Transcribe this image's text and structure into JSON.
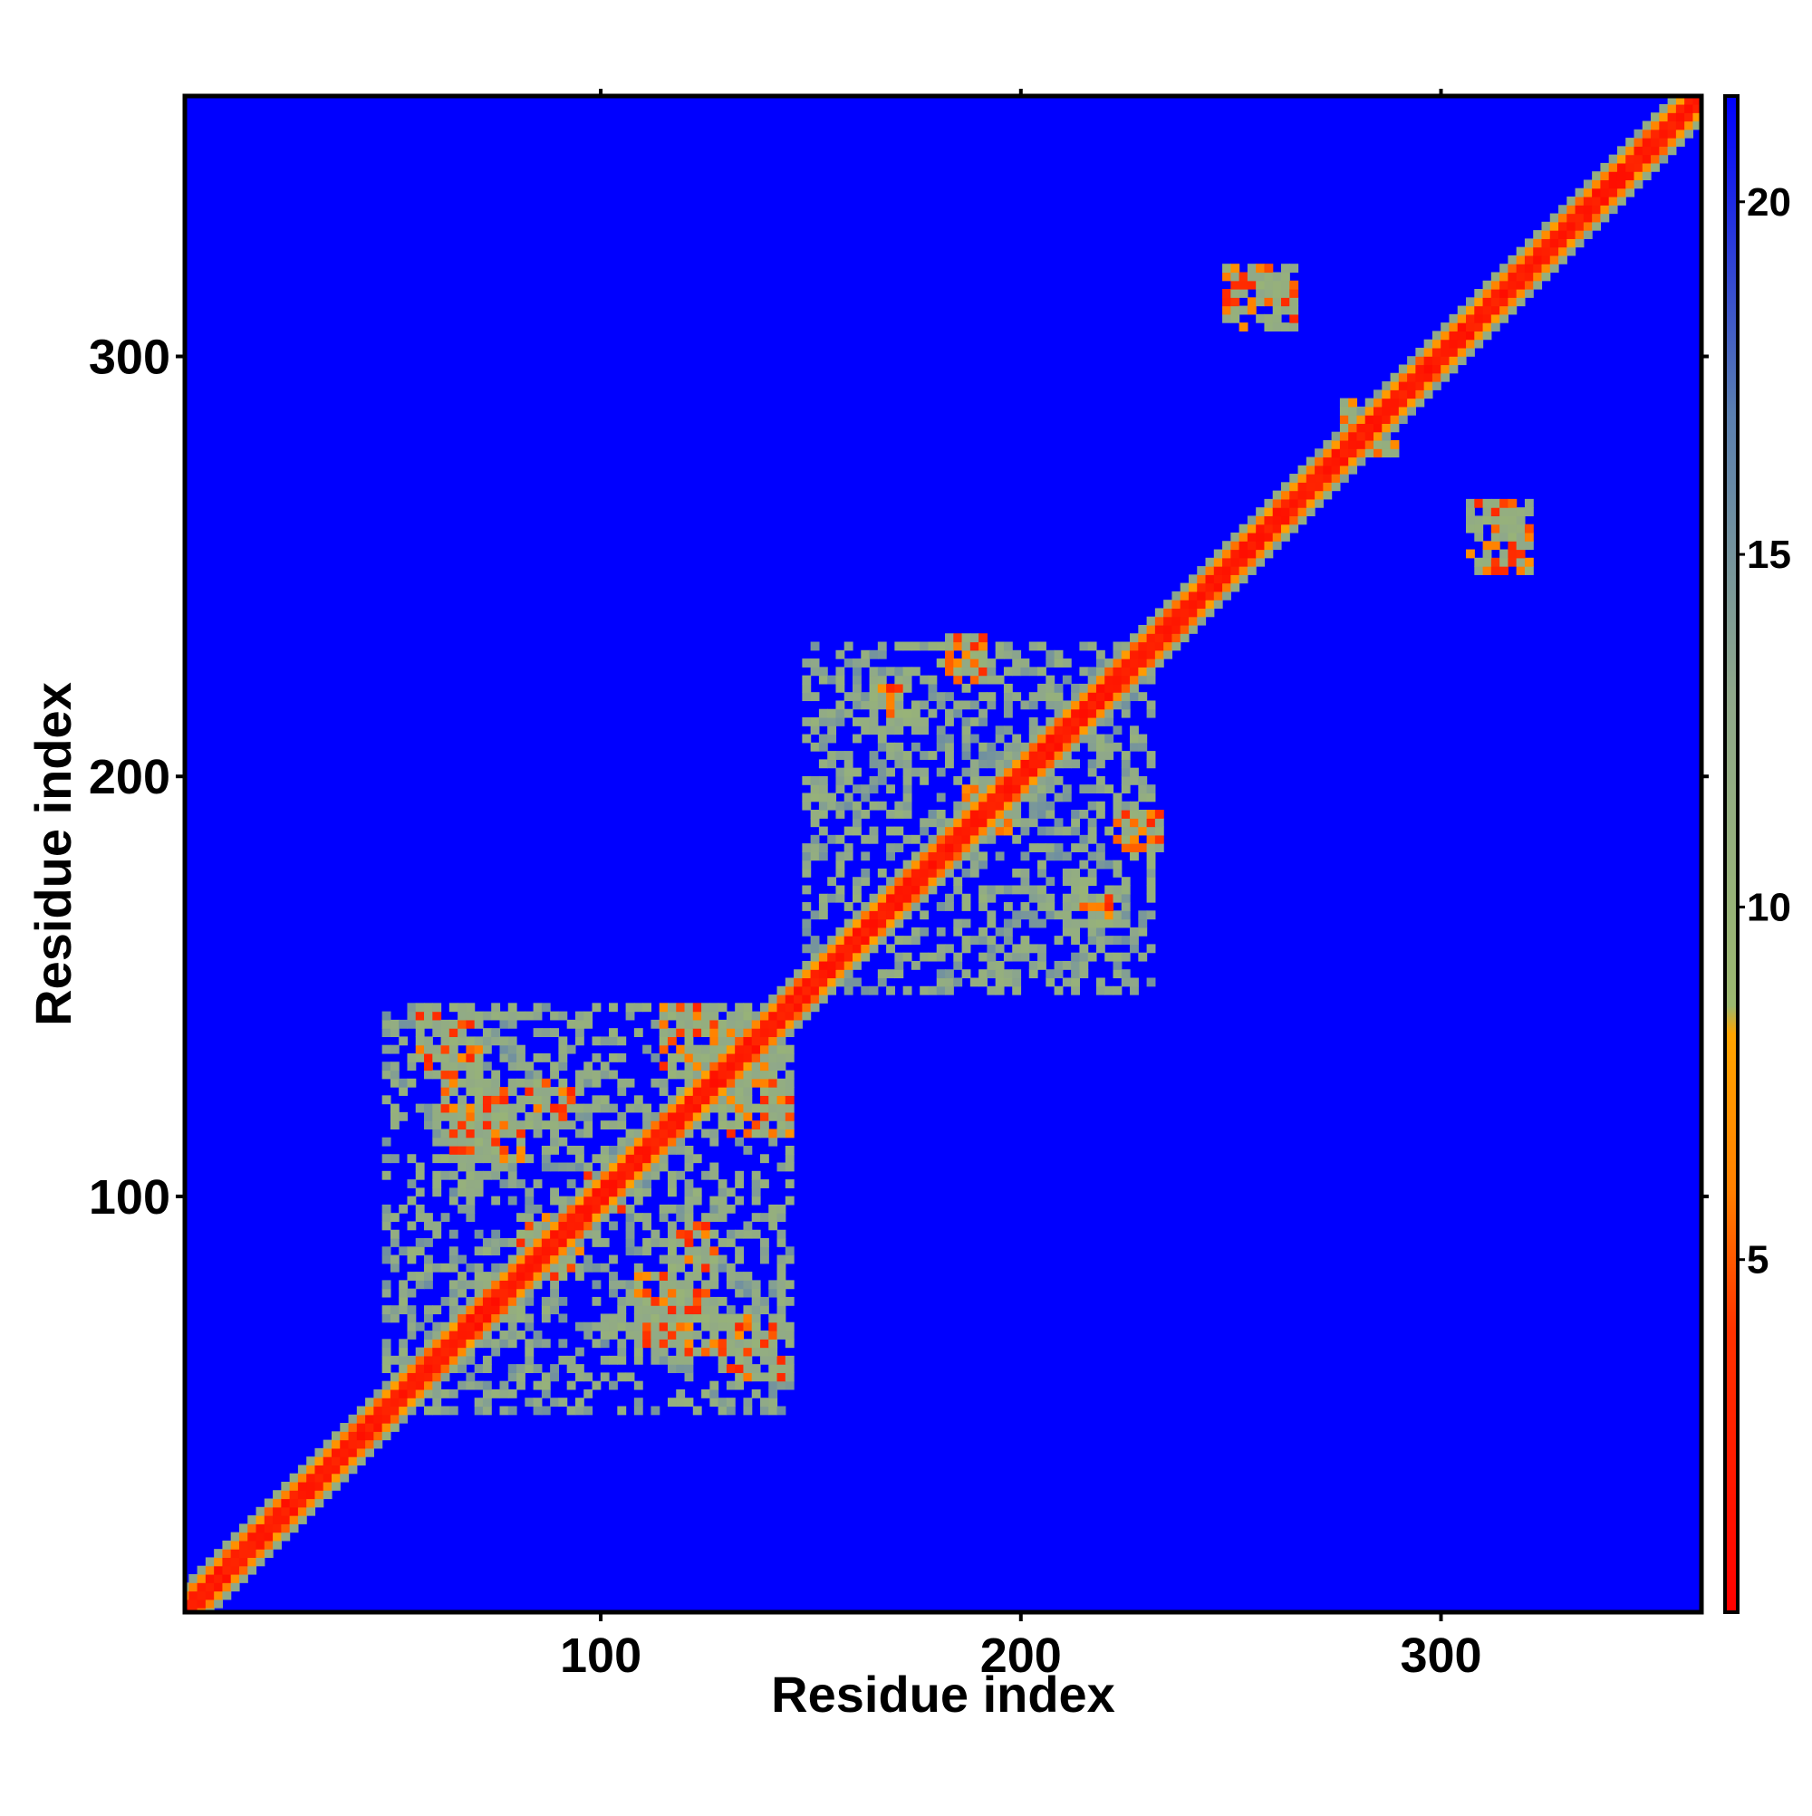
{
  "chart_data": {
    "type": "heatmap",
    "title": "",
    "xlabel": "Residue index",
    "ylabel": "Residue index",
    "xlim": [
      1,
      362
    ],
    "ylim": [
      1,
      362
    ],
    "x_ticks": [
      100,
      200,
      300
    ],
    "y_ticks": [
      100,
      200,
      300
    ],
    "x_tick_labels": [
      "100",
      "200",
      "300"
    ],
    "y_tick_labels": [
      "100",
      "200",
      "300"
    ],
    "colorbar": {
      "range": [
        0,
        21.5
      ],
      "ticks": [
        5,
        10,
        15,
        20
      ],
      "tick_labels": [
        "5",
        "10",
        "15",
        "20"
      ],
      "stops": [
        {
          "value": 0,
          "color": "#ff0000"
        },
        {
          "value": 4,
          "color": "#ff3300"
        },
        {
          "value": 6,
          "color": "#ff8000"
        },
        {
          "value": 8.2,
          "color": "#ffa500"
        },
        {
          "value": 8.6,
          "color": "#9cb86f"
        },
        {
          "value": 13,
          "color": "#8fa88a"
        },
        {
          "value": 17,
          "color": "#5a7fb0"
        },
        {
          "value": 21.5,
          "color": "#0000ff"
        }
      ]
    },
    "background_color": "#0000ff",
    "grid": false,
    "legend": "colorbar-right",
    "features": {
      "diagonal": {
        "from": 1,
        "to": 362
      },
      "domains": [
        {
          "x_range": [
            48,
            146
          ],
          "y_range": [
            48,
            146
          ]
        },
        {
          "x_range": [
            148,
            232
          ],
          "y_range": [
            148,
            232
          ]
        }
      ],
      "contact_bands": [
        {
          "x_range": [
            56,
            68
          ],
          "y_range": [
            132,
            144
          ]
        },
        {
          "x_range": [
            68,
            80
          ],
          "y_range": [
            108,
            120
          ]
        },
        {
          "x_range": [
            80,
            94
          ],
          "y_range": [
            116,
            128
          ]
        },
        {
          "x_range": [
            114,
            136
          ],
          "y_range": [
            128,
            145
          ]
        },
        {
          "x_range": [
            108,
            128
          ],
          "y_range": [
            62,
            82
          ]
        },
        {
          "x_range": [
            128,
            146
          ],
          "y_range": [
            58,
            72
          ]
        },
        {
          "x_range": [
            84,
            96
          ],
          "y_range": [
            80,
            94
          ]
        },
        {
          "x_range": [
            96,
            110
          ],
          "y_range": [
            96,
            110
          ]
        },
        {
          "x_range": [
            162,
            175
          ],
          "y_range": [
            210,
            218
          ]
        },
        {
          "x_range": [
            180,
            192
          ],
          "y_range": [
            225,
            232
          ]
        },
        {
          "x_range": [
            186,
            200
          ],
          "y_range": [
            188,
            200
          ]
        },
        {
          "x_range": [
            222,
            234
          ],
          "y_range": [
            182,
            192
          ]
        },
        {
          "x_range": [
            212,
            224
          ],
          "y_range": [
            164,
            172
          ]
        },
        {
          "x_range": [
            248,
            262
          ],
          "y_range": [
            308,
            322
          ]
        },
        {
          "x_range": [
            306,
            322
          ],
          "y_range": [
            252,
            266
          ]
        },
        {
          "x_range": [
            276,
            290
          ],
          "y_range": [
            276,
            288
          ]
        }
      ]
    }
  }
}
